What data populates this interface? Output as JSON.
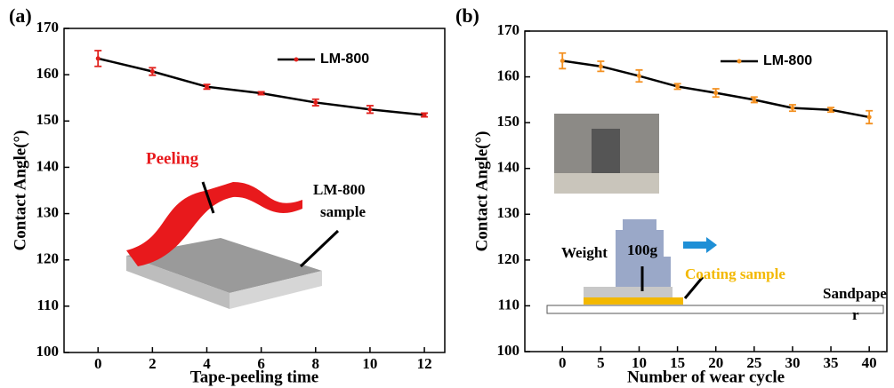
{
  "chart_data": [
    {
      "type": "line",
      "panel_label": "(a)",
      "x_label": "Tape-peeling time",
      "y_label": "Contact Angle(°)",
      "x": [
        0,
        2,
        4,
        6,
        8,
        10,
        12
      ],
      "series": [
        {
          "name": "LM-800",
          "color": "#e0201c",
          "line_color": "#000000",
          "values": [
            163.5,
            160.7,
            157.4,
            156.0,
            154.0,
            152.5,
            151.3
          ],
          "errors": [
            1.7,
            0.8,
            0.5,
            0.3,
            0.7,
            0.8,
            0.4
          ]
        }
      ],
      "xlim": [
        -1.25,
        12.75
      ],
      "xticks": [
        0,
        2,
        4,
        6,
        8,
        10,
        12
      ],
      "ylim": [
        100,
        170
      ],
      "yticks": [
        100,
        110,
        120,
        130,
        140,
        150,
        160,
        170
      ],
      "annotations": [
        "Peeling",
        "LM-800",
        "sample"
      ]
    },
    {
      "type": "line",
      "panel_label": "(b)",
      "x_label": "Number of wear cycle",
      "y_label": "Contact Angle(°)",
      "x": [
        0,
        5,
        10,
        15,
        20,
        25,
        30,
        35,
        40
      ],
      "series": [
        {
          "name": "LM-800",
          "color": "#f39020",
          "line_color": "#000000",
          "values": [
            163.5,
            162.3,
            160.2,
            157.9,
            156.5,
            155.0,
            153.2,
            152.8,
            151.2
          ],
          "errors": [
            1.7,
            1.1,
            1.3,
            0.6,
            0.9,
            0.6,
            0.7,
            0.5,
            1.4
          ]
        }
      ],
      "xlim": [
        -4.9,
        42.3
      ],
      "xticks": [
        0,
        5,
        10,
        15,
        20,
        25,
        30,
        35,
        40
      ],
      "ylim": [
        100,
        170
      ],
      "yticks": [
        100,
        110,
        120,
        130,
        140,
        150,
        160,
        170
      ],
      "annotations": [
        "Weight",
        "100g",
        "Coating  sample",
        "Sandpape",
        "r"
      ]
    }
  ]
}
